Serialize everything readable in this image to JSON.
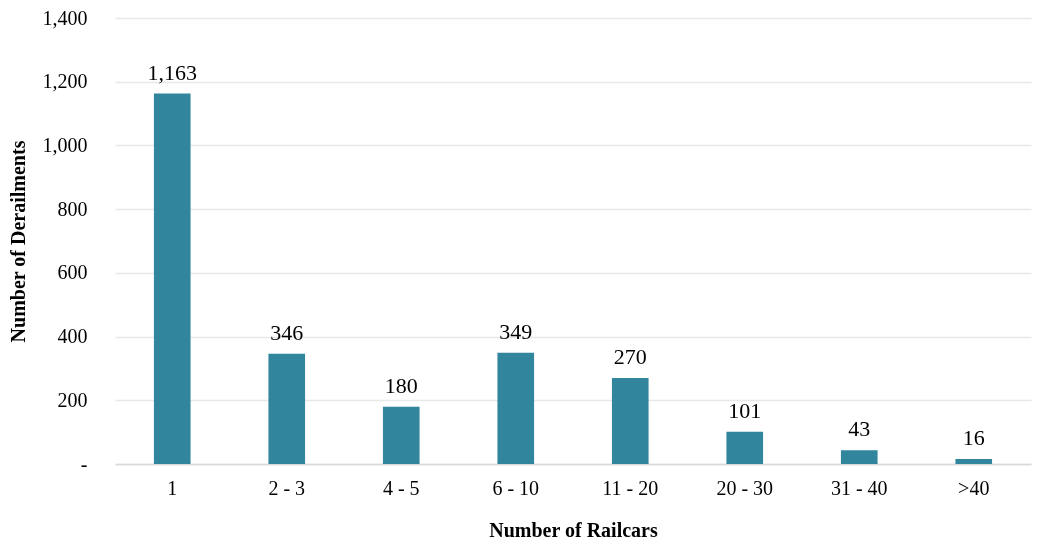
{
  "chart_data": {
    "type": "bar",
    "xlabel": "Number of Railcars",
    "ylabel": "Number of Derailments",
    "categories": [
      "1",
      "2 - 3",
      "4 - 5",
      "6 - 10",
      "11 - 20",
      "20 - 30",
      "31 - 40",
      ">40"
    ],
    "values": [
      1163,
      346,
      180,
      349,
      270,
      101,
      43,
      16
    ],
    "value_labels": [
      "1,163",
      "346",
      "180",
      "349",
      "270",
      "101",
      "43",
      "16"
    ],
    "color": "#31859c",
    "ylim": [
      0,
      1400
    ],
    "yticks": [
      {
        "value": 0,
        "label": "-"
      },
      200,
      400,
      600,
      800,
      {
        "value": 1000,
        "label": "1,000"
      },
      {
        "value": 1200,
        "label": "1,200"
      },
      {
        "value": 1400,
        "label": "1,400"
      }
    ],
    "grid": true
  }
}
